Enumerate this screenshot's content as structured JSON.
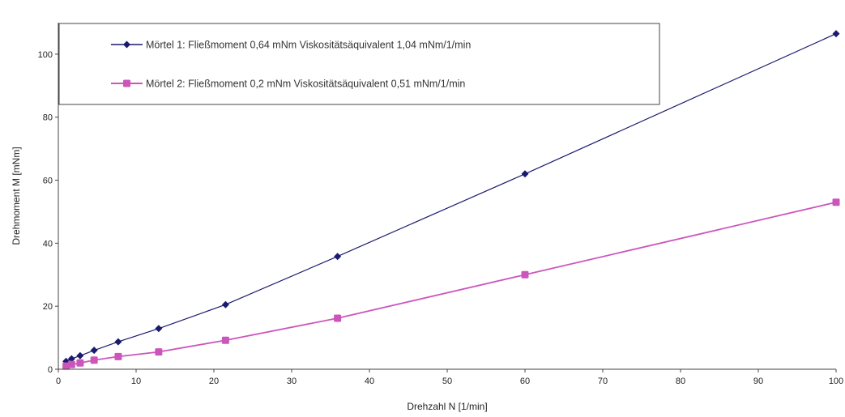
{
  "chart_data": {
    "type": "line",
    "title": "",
    "xlabel": "Drehzahl N [1/min]",
    "ylabel": "Drehmoment M [mNm]",
    "xlim": [
      0,
      100
    ],
    "ylim": [
      0,
      110
    ],
    "xticks": [
      0,
      10,
      20,
      30,
      40,
      50,
      60,
      70,
      80,
      90,
      100
    ],
    "yticks": [
      0,
      20,
      40,
      60,
      80,
      100
    ],
    "grid": false,
    "legend": "top-left",
    "series": [
      {
        "name": "Mörtel 1: Fließmoment 0,64 mNm Viskositätsäquivalent 1,04 mNm/1/min",
        "color": "#1a1a6e",
        "marker": "diamond",
        "x": [
          1,
          1.7,
          2.8,
          4.6,
          7.7,
          12.9,
          21.5,
          35.9,
          60,
          100
        ],
        "y": [
          2.5,
          3.3,
          4.3,
          6.0,
          8.7,
          12.9,
          20.5,
          35.8,
          62.0,
          106.5
        ]
      },
      {
        "name": "Mörtel 2: Fließmoment 0,2 mNm Viskositätsäquivalent 0,51 mNm/1/min",
        "color": "#cc55bb",
        "marker": "square",
        "x": [
          1,
          1.7,
          2.8,
          4.6,
          7.7,
          12.9,
          21.5,
          35.9,
          60,
          100
        ],
        "y": [
          1.0,
          1.5,
          2.0,
          2.9,
          4.0,
          5.5,
          9.2,
          16.2,
          30.0,
          53.0
        ]
      }
    ]
  }
}
